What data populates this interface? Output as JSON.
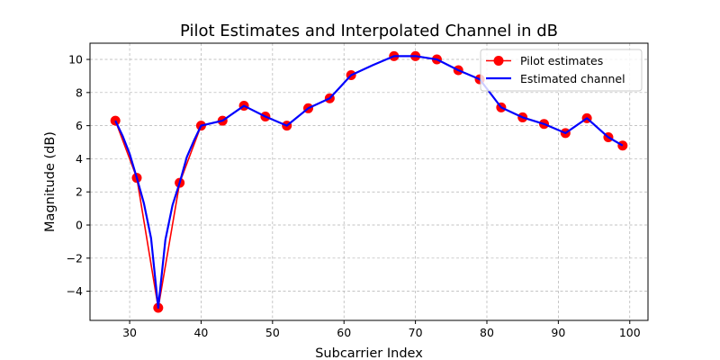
{
  "chart_data": {
    "type": "line",
    "title": "Pilot Estimates and Interpolated Channel in dB",
    "xlabel": "Subcarrier Index",
    "ylabel": "Magnitude (dB)",
    "xlim": [
      24.45,
      102.55
    ],
    "ylim": [
      -5.76,
      10.98
    ],
    "xticks": [
      30,
      40,
      50,
      60,
      70,
      80,
      90,
      100
    ],
    "yticks": [
      -4,
      -2,
      0,
      2,
      4,
      6,
      8,
      10
    ],
    "xtick_labels": [
      "30",
      "40",
      "50",
      "60",
      "70",
      "80",
      "90",
      "100"
    ],
    "ytick_labels": [
      "−4",
      "−2",
      "0",
      "2",
      "4",
      "6",
      "8",
      "10"
    ],
    "grid": true,
    "legend_position": "upper right",
    "series": [
      {
        "name": "Pilot estimates",
        "color": "#ff0000",
        "marker": "circle",
        "x": [
          28,
          31,
          34,
          37,
          40,
          43,
          46,
          49,
          52,
          55,
          58,
          61,
          64,
          67,
          70,
          73,
          76,
          79,
          82,
          85,
          88,
          91,
          94,
          97,
          99
        ],
        "y": [
          6.3,
          2.85,
          -5.0,
          2.55,
          6.0,
          6.3,
          7.2,
          6.55,
          6.0,
          7.05,
          7.65,
          9.05,
          9.65,
          10.2,
          10.2,
          10.0,
          9.35,
          8.8,
          7.1,
          6.5,
          6.1,
          5.55,
          6.45,
          5.3,
          4.8
        ],
        "marker_x": [
          28,
          31,
          34,
          37,
          40,
          43,
          46,
          49,
          52,
          55,
          58,
          61,
          67,
          70,
          73,
          76,
          79,
          82,
          85,
          88,
          91,
          94,
          97,
          99
        ]
      },
      {
        "name": "Estimated channel",
        "color": "#0000ff",
        "x": [
          28,
          29,
          30,
          31,
          32,
          33,
          34,
          35,
          36,
          37,
          38,
          39,
          40,
          43,
          46,
          49,
          52,
          55,
          58,
          61,
          64,
          67,
          70,
          73,
          76,
          79,
          82,
          85,
          88,
          91,
          94,
          97,
          99
        ],
        "y": [
          6.3,
          5.4,
          4.3,
          2.85,
          1.3,
          -0.8,
          -5.0,
          -0.9,
          1.2,
          2.55,
          4.1,
          5.1,
          6.0,
          6.3,
          7.2,
          6.55,
          6.0,
          7.05,
          7.65,
          9.05,
          9.65,
          10.2,
          10.2,
          10.0,
          9.35,
          8.8,
          7.1,
          6.5,
          6.1,
          5.55,
          6.45,
          5.3,
          4.8
        ]
      }
    ]
  }
}
